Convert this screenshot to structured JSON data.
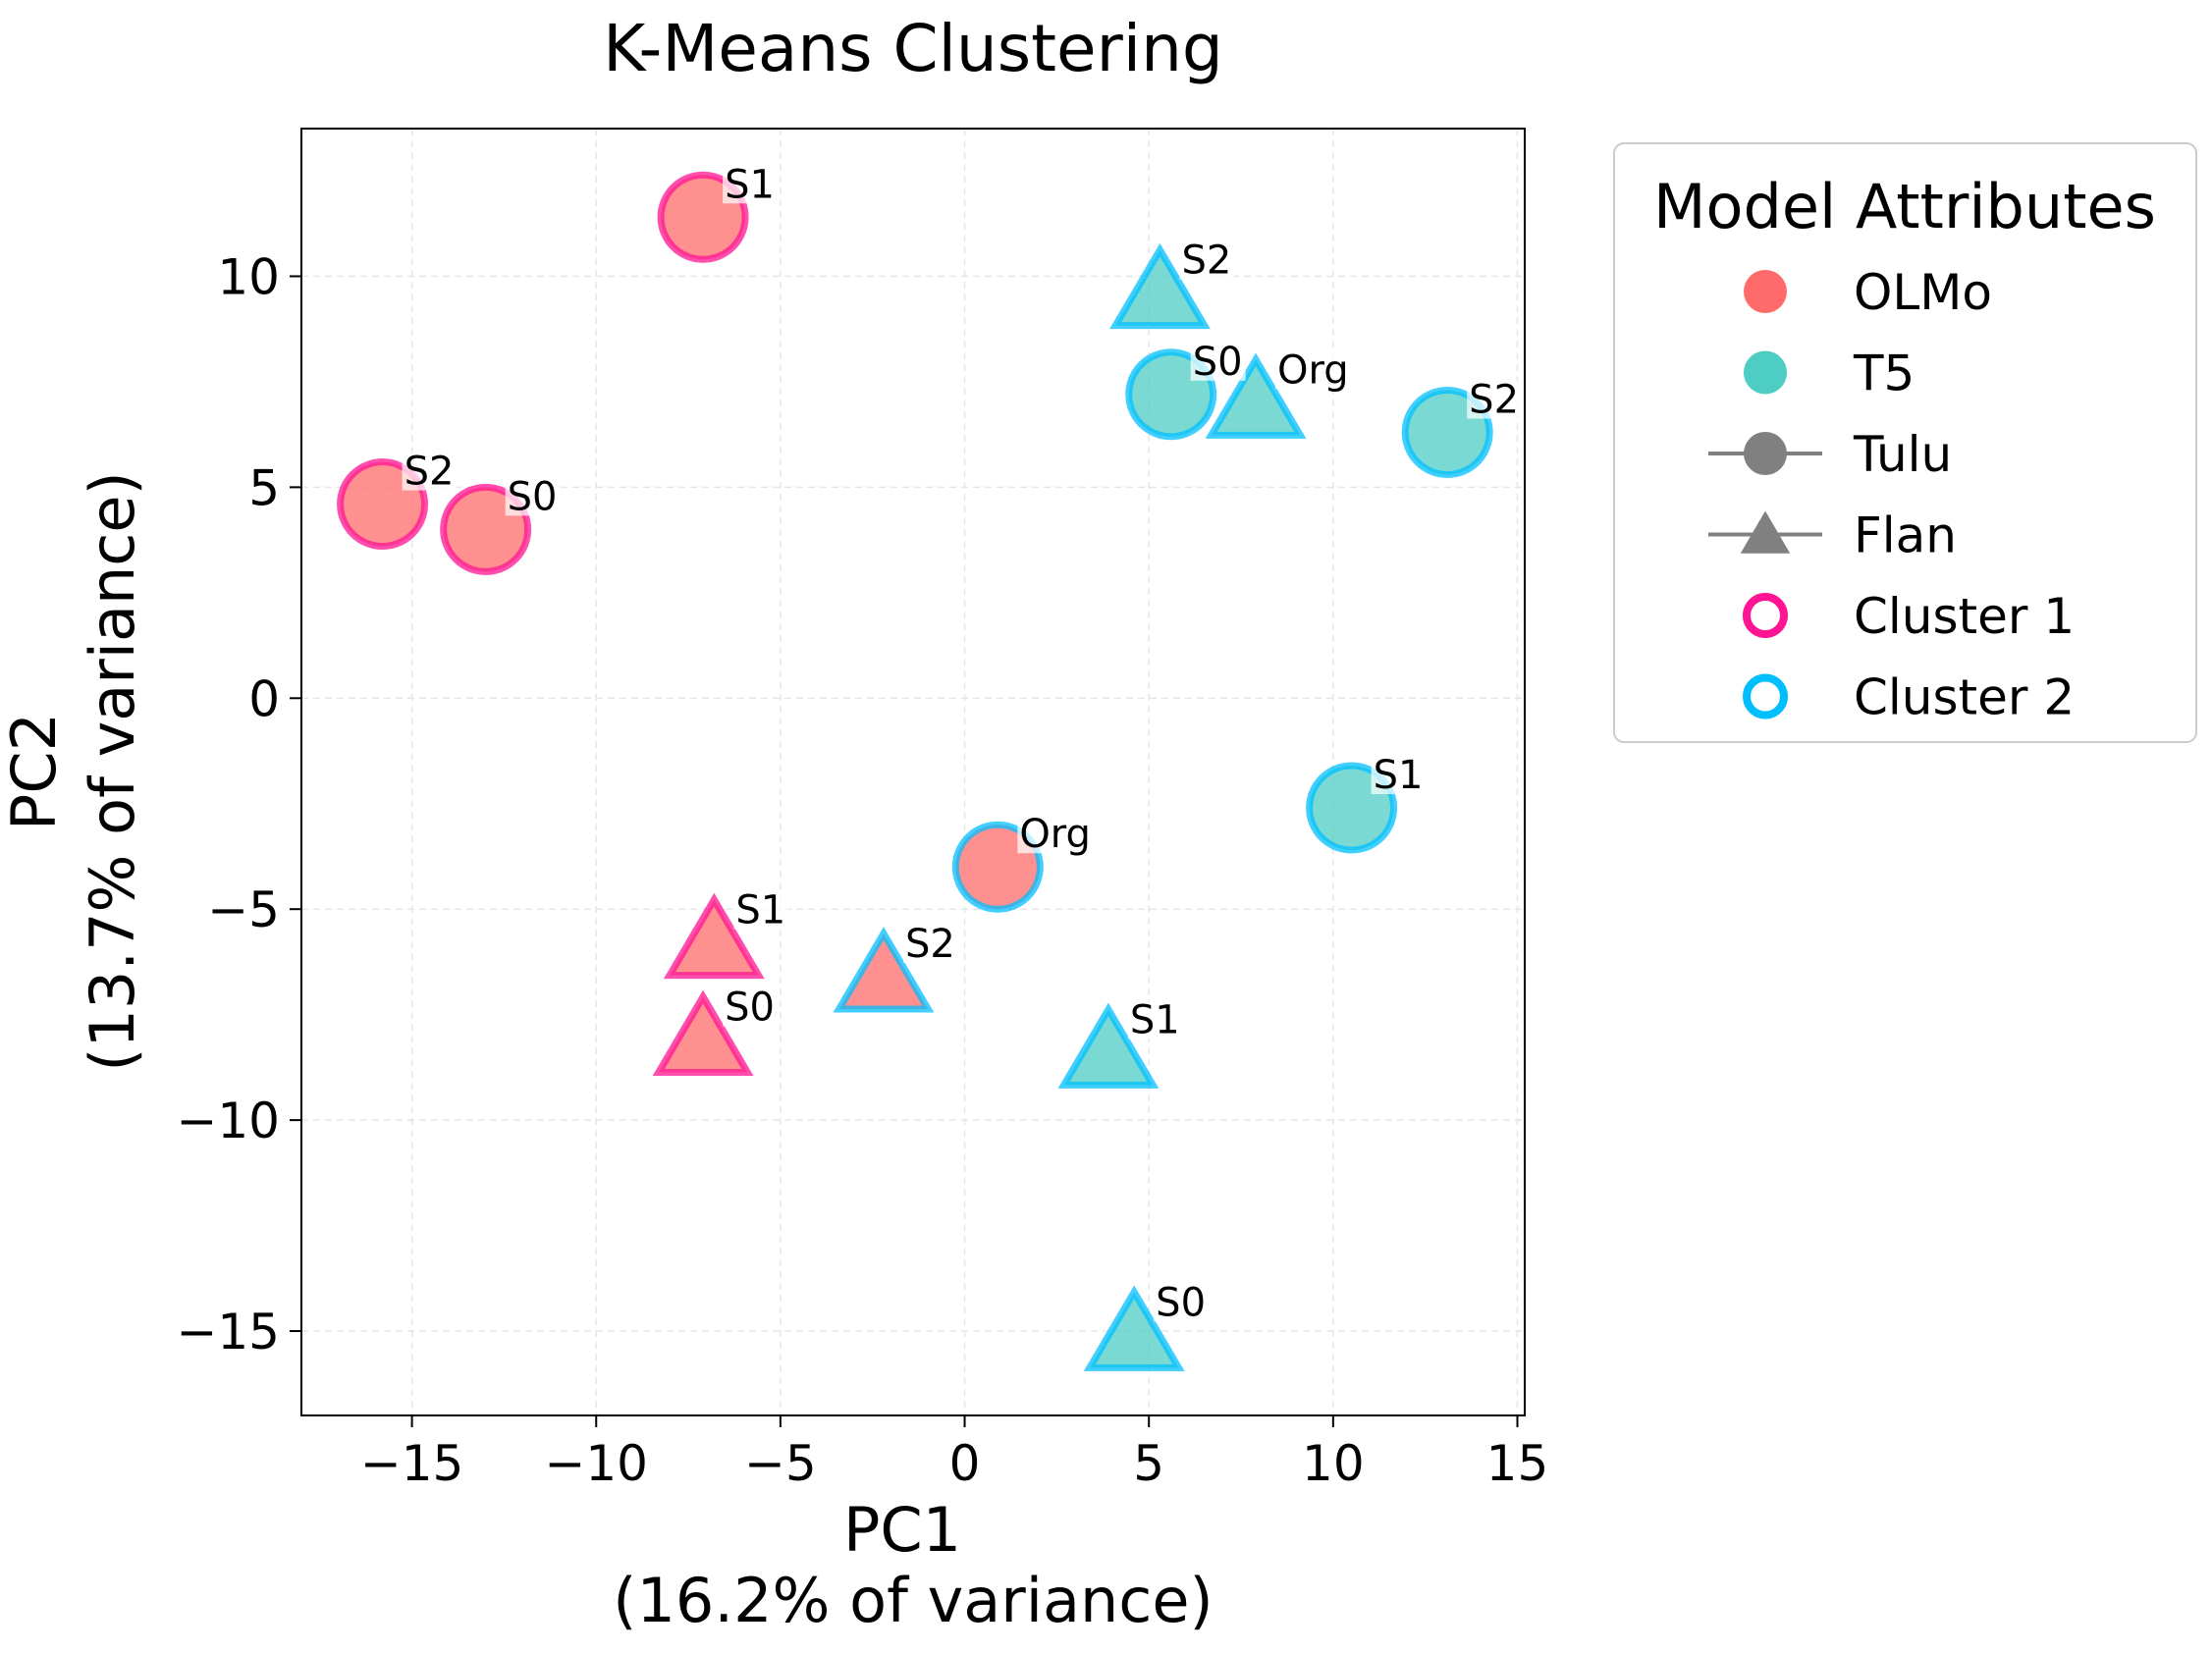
{
  "chart_data": {
    "type": "scatter",
    "title": "K-Means Clustering",
    "xlabel_line1": "PC1",
    "xlabel_line2": "(16.2% of variance)",
    "ylabel_line1": "PC2",
    "ylabel_line2": "(13.7% of variance)",
    "xlim": [
      -18,
      15.2
    ],
    "ylim": [
      -17,
      13.5
    ],
    "xticks": [
      -15,
      -10,
      -5,
      0,
      5,
      10,
      15
    ],
    "yticks": [
      -15,
      -10,
      -5,
      0,
      5,
      10
    ],
    "grid": true,
    "colors": {
      "olmo": "#ff6b6b",
      "t5": "#4ecdc4",
      "cluster1": "#ff1493",
      "cluster2": "#00bfff",
      "neutral": "#808080"
    },
    "legend": {
      "title": "Model Attributes",
      "placement": "outside-right",
      "entries": [
        {
          "label": "OLMo",
          "kind": "dot",
          "color": "#ff6b6b"
        },
        {
          "label": "T5",
          "kind": "dot",
          "color": "#4ecdc4"
        },
        {
          "label": "Tulu",
          "kind": "line-circle",
          "color": "#808080"
        },
        {
          "label": "Flan",
          "kind": "line-triangle",
          "color": "#808080"
        },
        {
          "label": "Cluster 1",
          "kind": "ring",
          "color": "#ff1493"
        },
        {
          "label": "Cluster 2",
          "kind": "ring",
          "color": "#00bfff"
        }
      ]
    },
    "points": [
      {
        "x": -7.1,
        "y": 11.4,
        "model": "OLMo",
        "data": "Tulu",
        "cluster": 1,
        "label": "S1"
      },
      {
        "x": -15.8,
        "y": 4.6,
        "model": "OLMo",
        "data": "Tulu",
        "cluster": 1,
        "label": "S2"
      },
      {
        "x": -13.0,
        "y": 4.0,
        "model": "OLMo",
        "data": "Tulu",
        "cluster": 1,
        "label": "S0"
      },
      {
        "x": 0.9,
        "y": -4.0,
        "model": "OLMo",
        "data": "Tulu",
        "cluster": 2,
        "label": "Org"
      },
      {
        "x": -6.8,
        "y": -5.8,
        "model": "OLMo",
        "data": "Flan",
        "cluster": 1,
        "label": "S1"
      },
      {
        "x": -7.1,
        "y": -8.1,
        "model": "OLMo",
        "data": "Flan",
        "cluster": 1,
        "label": "S0"
      },
      {
        "x": -2.2,
        "y": -6.6,
        "model": "OLMo",
        "data": "Flan",
        "cluster": 2,
        "label": "S2"
      },
      {
        "x": 5.3,
        "y": 9.6,
        "model": "T5",
        "data": "Flan",
        "cluster": 2,
        "label": "S2"
      },
      {
        "x": 5.6,
        "y": 7.2,
        "model": "T5",
        "data": "Tulu",
        "cluster": 2,
        "label": "S0"
      },
      {
        "x": 7.9,
        "y": 7.0,
        "model": "T5",
        "data": "Flan",
        "cluster": 2,
        "label": "Org"
      },
      {
        "x": 13.1,
        "y": 6.3,
        "model": "T5",
        "data": "Tulu",
        "cluster": 2,
        "label": "S2"
      },
      {
        "x": 10.5,
        "y": -2.6,
        "model": "T5",
        "data": "Tulu",
        "cluster": 2,
        "label": "S1"
      },
      {
        "x": 3.9,
        "y": -8.4,
        "model": "T5",
        "data": "Flan",
        "cluster": 2,
        "label": "S1"
      },
      {
        "x": 4.6,
        "y": -15.1,
        "model": "T5",
        "data": "Flan",
        "cluster": 2,
        "label": "S0"
      }
    ]
  }
}
